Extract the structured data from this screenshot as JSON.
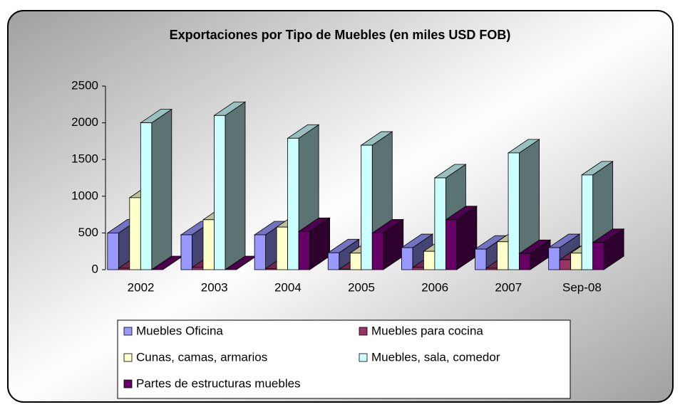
{
  "chart_data": {
    "type": "bar3d",
    "title": "Exportaciones por Tipo de Muebles (en miles USD FOB)",
    "categories": [
      "2002",
      "2003",
      "2004",
      "2005",
      "2006",
      "2007",
      "Sep-08"
    ],
    "series": [
      {
        "name": "Muebles Oficina",
        "color": "#9999ff",
        "values": [
          500,
          475,
          475,
          230,
          300,
          280,
          300
        ]
      },
      {
        "name": "Muebles para cocina",
        "color": "#993366",
        "values": [
          20,
          30,
          15,
          5,
          30,
          20,
          135
        ]
      },
      {
        "name": "Cunas, camas, armarios",
        "color": "#ffffcc",
        "values": [
          980,
          680,
          580,
          225,
          250,
          380,
          225
        ]
      },
      {
        "name": "Muebles, sala, comedor",
        "color": "#ccffff",
        "values": [
          2000,
          2100,
          1790,
          1695,
          1250,
          1590,
          1290
        ]
      },
      {
        "name": "Partes de estructuras muebles",
        "color": "#660066",
        "values": [
          0,
          0,
          520,
          500,
          680,
          220,
          370
        ]
      }
    ],
    "ylim": [
      0,
      2500
    ],
    "yticks": [
      0,
      500,
      1000,
      1500,
      2000,
      2500
    ]
  }
}
